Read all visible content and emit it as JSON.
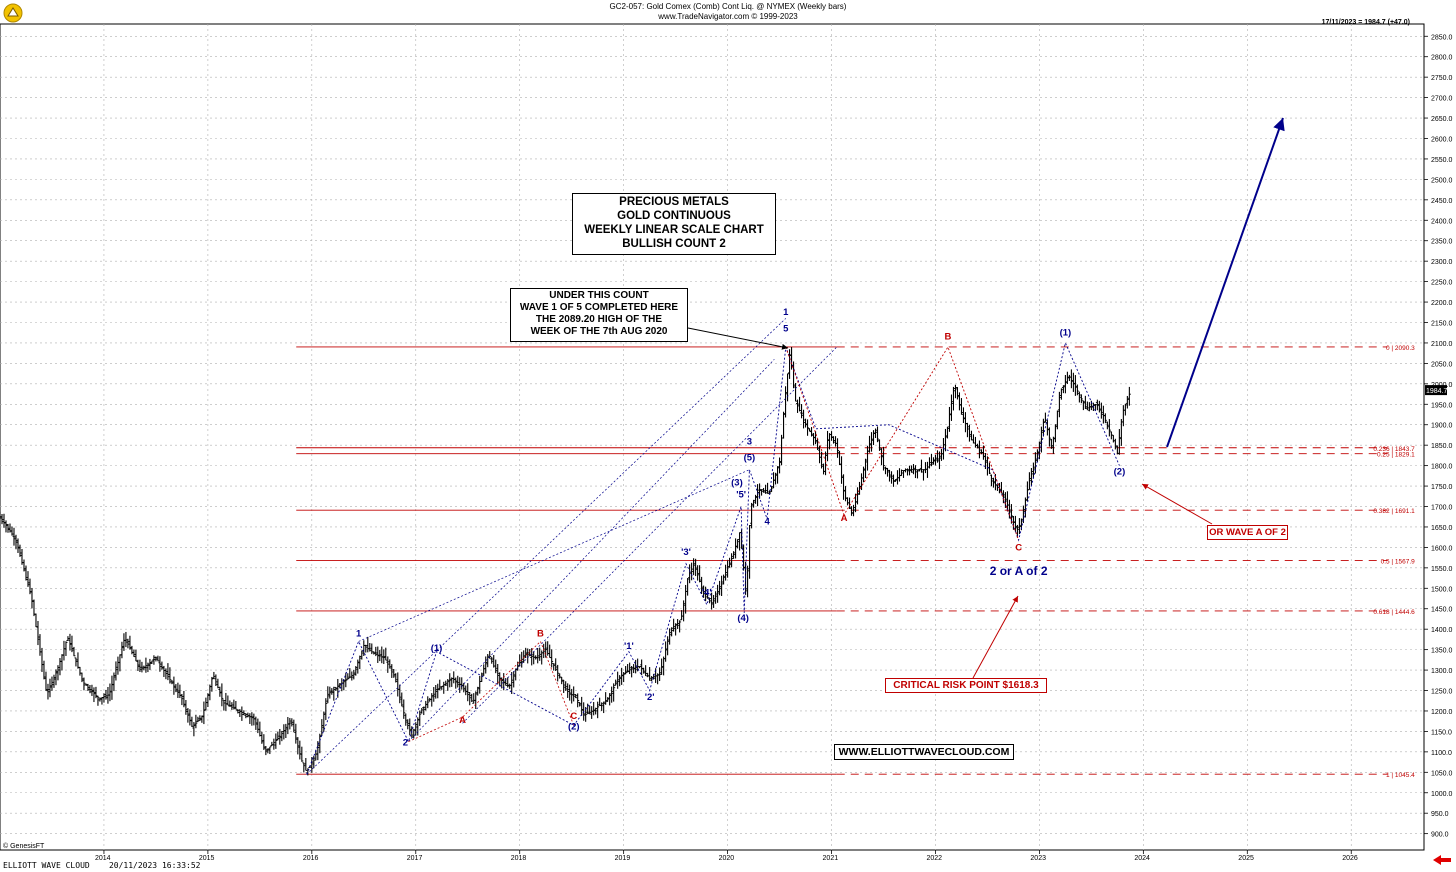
{
  "header": {
    "title": "GC2-057:  Gold Comex (Comb) Cont Liq. @ NYMEX  (Weekly bars)",
    "subtitle": "www.TradeNavigator.com © 1999-2023"
  },
  "last_value_label": "17/11/2023 = 1984.7 (+47.0)",
  "current_price_tag": "1984.7",
  "provider": "© GenesisFT",
  "status_bar": "ELLIOTT WAVE CLOUD    20/11/2023 16:33:52",
  "title_box": {
    "line1": "PRECIOUS METALS",
    "line2": "GOLD CONTINUOUS",
    "line3": "WEEKLY LINEAR SCALE CHART",
    "line4": "BULLISH COUNT 2"
  },
  "note_box": {
    "line1": "UNDER THIS COUNT",
    "line2": "WAVE 1 OF 5 COMPLETED HERE",
    "line3": "THE 2089.20 HIGH OF THE",
    "line4": "WEEK OF THE 7th AUG 2020"
  },
  "website": "WWW.ELLIOTTWAVECLOUD.COM",
  "critical_label": "CRITICAL RISK POINT $1618.3",
  "alt_label": "OR WAVE A OF 2",
  "colors": {
    "red": "#c00000",
    "blue": "#00008b",
    "bar": "#000000",
    "grid": "#b0b0b0"
  },
  "chart_data": {
    "type": "ohlc",
    "y_axis_range": [
      860,
      2880
    ],
    "y_ticks": [
      900,
      950,
      1000,
      1050,
      1100,
      1150,
      1200,
      1250,
      1300,
      1350,
      1400,
      1450,
      1500,
      1550,
      1600,
      1650,
      1700,
      1750,
      1800,
      1850,
      1900,
      1950,
      2000,
      2050,
      2100,
      2150,
      2200,
      2250,
      2300,
      2350,
      2400,
      2450,
      2500,
      2550,
      2600,
      2650,
      2700,
      2750,
      2800,
      2850
    ],
    "x_axis_range": [
      2013.0,
      2026.7
    ],
    "x_ticks": [
      "2014",
      "2015",
      "2016",
      "2017",
      "2018",
      "2019",
      "2020",
      "2021",
      "2022",
      "2023",
      "2024",
      "2025",
      "2026"
    ],
    "price_path": [
      [
        2013.0,
        1675
      ],
      [
        2013.15,
        1620
      ],
      [
        2013.3,
        1480
      ],
      [
        2013.45,
        1240
      ],
      [
        2013.55,
        1300
      ],
      [
        2013.65,
        1380
      ],
      [
        2013.8,
        1270
      ],
      [
        2013.95,
        1230
      ],
      [
        2014.05,
        1240
      ],
      [
        2014.2,
        1380
      ],
      [
        2014.35,
        1300
      ],
      [
        2014.5,
        1330
      ],
      [
        2014.6,
        1290
      ],
      [
        2014.75,
        1230
      ],
      [
        2014.85,
        1160
      ],
      [
        2014.95,
        1190
      ],
      [
        2015.05,
        1290
      ],
      [
        2015.15,
        1220
      ],
      [
        2015.3,
        1200
      ],
      [
        2015.45,
        1180
      ],
      [
        2015.55,
        1100
      ],
      [
        2015.7,
        1140
      ],
      [
        2015.8,
        1180
      ],
      [
        2015.9,
        1080
      ],
      [
        2015.95,
        1050
      ],
      [
        2016.05,
        1100
      ],
      [
        2016.15,
        1240
      ],
      [
        2016.25,
        1260
      ],
      [
        2016.4,
        1290
      ],
      [
        2016.5,
        1360
      ],
      [
        2016.6,
        1340
      ],
      [
        2016.7,
        1330
      ],
      [
        2016.8,
        1280
      ],
      [
        2016.9,
        1180
      ],
      [
        2016.96,
        1140
      ],
      [
        2017.05,
        1200
      ],
      [
        2017.2,
        1250
      ],
      [
        2017.35,
        1280
      ],
      [
        2017.45,
        1260
      ],
      [
        2017.55,
        1220
      ],
      [
        2017.7,
        1340
      ],
      [
        2017.8,
        1280
      ],
      [
        2017.9,
        1260
      ],
      [
        2017.96,
        1300
      ],
      [
        2018.05,
        1340
      ],
      [
        2018.15,
        1330
      ],
      [
        2018.25,
        1350
      ],
      [
        2018.35,
        1300
      ],
      [
        2018.45,
        1250
      ],
      [
        2018.55,
        1230
      ],
      [
        2018.62,
        1190
      ],
      [
        2018.7,
        1200
      ],
      [
        2018.85,
        1230
      ],
      [
        2018.95,
        1280
      ],
      [
        2019.05,
        1300
      ],
      [
        2019.15,
        1310
      ],
      [
        2019.25,
        1280
      ],
      [
        2019.35,
        1290
      ],
      [
        2019.45,
        1400
      ],
      [
        2019.55,
        1420
      ],
      [
        2019.62,
        1530
      ],
      [
        2019.68,
        1560
      ],
      [
        2019.75,
        1500
      ],
      [
        2019.85,
        1460
      ],
      [
        2019.95,
        1520
      ],
      [
        2020.05,
        1580
      ],
      [
        2020.12,
        1640
      ],
      [
        2020.18,
        1480
      ],
      [
        2020.22,
        1700
      ],
      [
        2020.3,
        1740
      ],
      [
        2020.4,
        1730
      ],
      [
        2020.5,
        1810
      ],
      [
        2020.55,
        1960
      ],
      [
        2020.6,
        2080
      ],
      [
        2020.65,
        1960
      ],
      [
        2020.75,
        1900
      ],
      [
        2020.85,
        1860
      ],
      [
        2020.92,
        1780
      ],
      [
        2020.97,
        1880
      ],
      [
        2021.05,
        1850
      ],
      [
        2021.12,
        1730
      ],
      [
        2021.2,
        1680
      ],
      [
        2021.28,
        1760
      ],
      [
        2021.35,
        1840
      ],
      [
        2021.42,
        1890
      ],
      [
        2021.5,
        1800
      ],
      [
        2021.6,
        1760
      ],
      [
        2021.7,
        1790
      ],
      [
        2021.8,
        1790
      ],
      [
        2021.9,
        1790
      ],
      [
        2021.97,
        1810
      ],
      [
        2022.05,
        1820
      ],
      [
        2022.12,
        1900
      ],
      [
        2022.18,
        2000
      ],
      [
        2022.25,
        1930
      ],
      [
        2022.35,
        1860
      ],
      [
        2022.45,
        1830
      ],
      [
        2022.55,
        1760
      ],
      [
        2022.62,
        1740
      ],
      [
        2022.7,
        1700
      ],
      [
        2022.78,
        1640
      ],
      [
        2022.82,
        1660
      ],
      [
        2022.9,
        1760
      ],
      [
        2022.97,
        1820
      ],
      [
        2023.05,
        1920
      ],
      [
        2023.12,
        1840
      ],
      [
        2023.2,
        1980
      ],
      [
        2023.28,
        2020
      ],
      [
        2023.35,
        1990
      ],
      [
        2023.45,
        1940
      ],
      [
        2023.55,
        1950
      ],
      [
        2023.62,
        1920
      ],
      [
        2023.7,
        1870
      ],
      [
        2023.75,
        1830
      ],
      [
        2023.8,
        1930
      ],
      [
        2023.88,
        1984.7
      ]
    ],
    "horizontal_levels": [
      {
        "label": "0 | 2090.3",
        "value": 2090.3
      },
      {
        "label": "0.236 | 1843.7",
        "value": 1843.7
      },
      {
        "label": "0.25 | 1829.1",
        "value": 1829.1
      },
      {
        "label": "0.382 | 1691.1",
        "value": 1691.1
      },
      {
        "label": "0.5 | 1567.9",
        "value": 1567.9
      },
      {
        "label": "0.618 | 1444.6",
        "value": 1444.6
      },
      {
        "label": "1 | 1045.4",
        "value": 1045.4
      }
    ],
    "wave_labels": [
      {
        "text": "1",
        "x": 2016.45,
        "y": 1382,
        "color": "blue"
      },
      {
        "text": "2",
        "x": 2016.9,
        "y": 1115,
        "color": "blue"
      },
      {
        "text": "(1)",
        "x": 2017.2,
        "y": 1347,
        "color": "blue"
      },
      {
        "text": "A",
        "x": 2017.45,
        "y": 1170,
        "color": "red"
      },
      {
        "text": "B",
        "x": 2018.2,
        "y": 1382,
        "color": "red"
      },
      {
        "text": "C",
        "x": 2018.52,
        "y": 1180,
        "color": "red"
      },
      {
        "text": "(2)",
        "x": 2018.52,
        "y": 1155,
        "color": "blue"
      },
      {
        "text": "'1'",
        "x": 2019.05,
        "y": 1352,
        "color": "blue"
      },
      {
        "text": "'2'",
        "x": 2019.25,
        "y": 1227,
        "color": "blue"
      },
      {
        "text": "'3'",
        "x": 2019.6,
        "y": 1582,
        "color": "blue"
      },
      {
        "text": "'4'",
        "x": 2019.8,
        "y": 1482,
        "color": "blue"
      },
      {
        "text": "'5'",
        "x": 2020.13,
        "y": 1722,
        "color": "blue"
      },
      {
        "text": "(3)",
        "x": 2020.09,
        "y": 1752,
        "color": "blue"
      },
      {
        "text": "(4)",
        "x": 2020.15,
        "y": 1420,
        "color": "blue"
      },
      {
        "text": "(5)",
        "x": 2020.21,
        "y": 1812,
        "color": "blue"
      },
      {
        "text": "3",
        "x": 2020.21,
        "y": 1852,
        "color": "blue"
      },
      {
        "text": "4",
        "x": 2020.38,
        "y": 1656,
        "color": "blue"
      },
      {
        "text": "5",
        "x": 2020.56,
        "y": 2128,
        "color": "blue"
      },
      {
        "text": "1",
        "x": 2020.56,
        "y": 2168,
        "color": "blue"
      },
      {
        "text": "A",
        "x": 2021.12,
        "y": 1665,
        "color": "red"
      },
      {
        "text": "B",
        "x": 2022.12,
        "y": 2108,
        "color": "red"
      },
      {
        "text": "C",
        "x": 2022.8,
        "y": 1592,
        "color": "red"
      },
      {
        "text": "2 or A of 2",
        "x": 2022.8,
        "y": 1532,
        "color": "blue"
      },
      {
        "text": "(1)",
        "x": 2023.25,
        "y": 2118,
        "color": "blue"
      },
      {
        "text": "(2)",
        "x": 2023.77,
        "y": 1778,
        "color": "blue"
      }
    ]
  }
}
